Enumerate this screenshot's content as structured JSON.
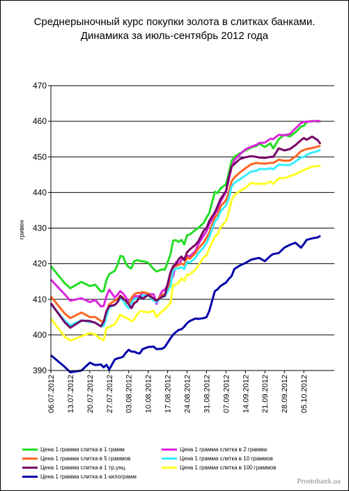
{
  "chart_data": {
    "type": "line",
    "title": "Среднерыночный курс покупки золота в слитках банками. Динамика за июль-сентябрь 2012 года",
    "ylabel": "гривен",
    "ylim": [
      390,
      470
    ],
    "yticks": [
      390,
      400,
      410,
      420,
      430,
      440,
      450,
      460,
      470
    ],
    "grid": "horizontal",
    "legend_position": "bottom",
    "xlim": [
      0,
      102
    ],
    "x_tick_labels": [
      "06.07.2012",
      "13.07.2012",
      "20.07.2012",
      "27.07.2012",
      "03.08.2012",
      "10.08.2012",
      "17.08.2012",
      "24.08.2012",
      "31.08.2012",
      "07.09.2012",
      "14.09.2012",
      "21.09.2012",
      "28.09.2012",
      "05.10.2012"
    ],
    "x_tick_pos": [
      0,
      7,
      14,
      21,
      28,
      35,
      42,
      49,
      56,
      63,
      70,
      77,
      84,
      91
    ],
    "x": [
      0,
      5,
      7,
      11,
      14,
      16,
      18,
      19,
      20,
      21,
      23,
      24,
      25,
      26,
      27,
      28,
      29,
      30,
      31,
      32,
      33,
      35,
      37,
      38,
      40,
      41,
      43,
      44,
      45,
      46,
      47,
      48,
      49,
      50,
      52,
      53,
      55,
      56,
      57,
      59,
      60,
      61,
      63,
      64,
      65,
      66,
      68,
      70,
      72,
      74,
      75,
      77,
      79,
      80,
      82,
      84,
      86,
      88,
      90,
      91,
      92,
      94,
      96,
      97
    ],
    "series": [
      {
        "name": "Цена 1 грамма слитка в 1 грамм",
        "color": "#22dd22",
        "values": [
          419.3,
          414.5,
          413.1,
          414.9,
          413.7,
          414.1,
          412.2,
          412.3,
          415.4,
          417.1,
          418.0,
          419.7,
          422.2,
          422.0,
          420.0,
          419.0,
          418.7,
          420.7,
          421.0,
          420.8,
          420.7,
          420.3,
          418.5,
          417.8,
          418.4,
          418.3,
          422.5,
          426.5,
          426.6,
          426.1,
          426.7,
          425.4,
          428.0,
          428.2,
          429.5,
          430.0,
          431.5,
          433.0,
          434.2,
          440.2,
          439.8,
          441.1,
          442.3,
          445.4,
          448.9,
          450.0,
          451.0,
          451.8,
          452.6,
          453.1,
          453.7,
          452.8,
          453.8,
          452.4,
          455.0,
          456.2,
          455.7,
          456.9,
          458.5,
          458.7,
          459.8,
          460.1,
          459.9,
          460.0
        ]
      },
      {
        "name": "Цена 1 грамма слитка в 2 грамма",
        "color": "#dd22dd",
        "values": [
          415.5,
          411.4,
          409.6,
          410.3,
          409.2,
          409.8,
          408.0,
          408.1,
          410.8,
          412.7,
          410.5,
          411.3,
          412.3,
          411.6,
          410.6,
          409.1,
          408.8,
          410.8,
          410.9,
          410.8,
          411.9,
          411.5,
          411.4,
          408.7,
          412.3,
          412.7,
          415.3,
          416.5,
          420.4,
          419.8,
          421.1,
          421.6,
          422.2,
          422.1,
          423.5,
          425.4,
          427.9,
          429.1,
          431.0,
          434.0,
          435.0,
          437.3,
          440.2,
          443.5,
          447.0,
          449.1,
          450.7,
          452.1,
          452.8,
          453.4,
          453.9,
          454.0,
          455.1,
          455.0,
          456.2,
          456.1,
          456.4,
          458.0,
          459.5,
          459.8,
          459.9,
          460.0,
          460.1,
          460.0
        ]
      },
      {
        "name": "Цена 1 грамма слитка в 5 граммов",
        "color": "#ff6622",
        "values": [
          410.8,
          406.0,
          404.7,
          406.3,
          405.0,
          405.0,
          403.9,
          403.7,
          406.5,
          408.6,
          409.6,
          410.1,
          411.0,
          410.5,
          409.2,
          408.6,
          410.4,
          411.4,
          411.8,
          411.8,
          412.0,
          411.7,
          410.0,
          409.6,
          411.2,
          411.5,
          414.5,
          419.0,
          419.4,
          419.6,
          420.1,
          419.6,
          421.8,
          421.4,
          423.0,
          424.2,
          426.0,
          427.3,
          428.6,
          433.0,
          433.8,
          436.0,
          437.8,
          440.0,
          443.1,
          444.2,
          445.6,
          446.8,
          447.9,
          448.3,
          448.2,
          448.1,
          448.3,
          448.3,
          449.2,
          448.9,
          449.0,
          450.1,
          451.6,
          451.9,
          452.2,
          452.5,
          452.9,
          453.1
        ]
      },
      {
        "name": "Цена 1 грамма слитка в 10 граммов",
        "color": "#33eeff",
        "values": [
          408.6,
          404.0,
          402.7,
          404.1,
          403.6,
          403.5,
          402.4,
          402.5,
          405.3,
          407.7,
          408.4,
          409.2,
          410.2,
          409.8,
          408.3,
          407.5,
          409.0,
          410.1,
          410.3,
          410.4,
          411.1,
          411.1,
          409.7,
          409.2,
          410.7,
          410.8,
          413.6,
          418.1,
          418.7,
          418.7,
          419.0,
          418.5,
          420.5,
          420.3,
          421.6,
          422.9,
          424.6,
          425.9,
          427.5,
          431.8,
          432.7,
          434.6,
          436.4,
          438.4,
          441.6,
          442.7,
          443.7,
          444.8,
          445.9,
          446.1,
          446.6,
          446.5,
          446.8,
          446.5,
          447.8,
          447.7,
          447.7,
          448.7,
          449.8,
          450.0,
          450.6,
          451.2,
          451.6,
          452.0
        ]
      },
      {
        "name": "Цена 1 грамма слитка в 1 тр.унц.",
        "color": "#770066",
        "values": [
          408.9,
          403.5,
          402.0,
          404.0,
          403.9,
          403.4,
          402.4,
          403.7,
          406.7,
          408.1,
          408.4,
          409.2,
          410.9,
          410.1,
          409.7,
          408.6,
          407.5,
          408.9,
          409.4,
          410.8,
          410.2,
          411.2,
          410.2,
          409.6,
          410.7,
          411.0,
          417.5,
          419.3,
          419.9,
          421.3,
          422.0,
          421.0,
          423.2,
          424.0,
          425.3,
          426.2,
          429.3,
          430.0,
          432.0,
          434.4,
          436.2,
          438.1,
          440.4,
          444.3,
          447.3,
          448.0,
          449.4,
          449.9,
          450.2,
          450.0,
          449.8,
          449.7,
          450.0,
          450.0,
          452.4,
          451.8,
          452.2,
          453.3,
          454.7,
          455.3,
          454.8,
          455.7,
          454.7,
          453.6
        ]
      },
      {
        "name": "Цена 1 грамма слитка в 100 граммов",
        "color": "#ffff22",
        "values": [
          404.6,
          399.5,
          398.4,
          399.6,
          400.5,
          400.1,
          398.8,
          398.5,
          401.9,
          402.2,
          403.0,
          404.3,
          405.7,
          405.3,
          404.8,
          404.5,
          403.8,
          404.4,
          405.7,
          406.6,
          406.6,
          406.3,
          406.8,
          405.0,
          406.6,
          407.2,
          409.0,
          414.0,
          414.2,
          414.6,
          415.9,
          415.2,
          416.9,
          417.0,
          418.3,
          419.4,
          421.8,
          422.3,
          424.3,
          427.6,
          428.3,
          430.1,
          432.0,
          434.6,
          437.7,
          439.3,
          440.4,
          441.3,
          442.7,
          442.4,
          442.5,
          442.4,
          443.1,
          442.4,
          444.0,
          444.0,
          444.6,
          445.1,
          446.0,
          446.3,
          446.6,
          447.3,
          447.4,
          447.5
        ]
      },
      {
        "name": "Цена 1 грамма слитка в 1 килограмм",
        "color": "#0000aa",
        "values": [
          394.3,
          391.0,
          389.5,
          390.0,
          392.2,
          391.5,
          391.7,
          390.9,
          391.6,
          390.3,
          393.1,
          393.4,
          393.6,
          393.9,
          395.0,
          395.8,
          395.3,
          395.3,
          394.9,
          394.8,
          396.0,
          396.6,
          396.7,
          396.0,
          396.1,
          396.6,
          399.0,
          400.1,
          400.8,
          401.4,
          401.6,
          402.3,
          403.3,
          403.9,
          404.6,
          404.5,
          404.7,
          405.0,
          406.7,
          412.3,
          412.8,
          413.7,
          414.7,
          415.7,
          416.5,
          418.5,
          419.5,
          420.2,
          421.1,
          421.5,
          421.6,
          420.7,
          422.2,
          422.7,
          423.0,
          424.5,
          425.3,
          425.9,
          424.5,
          425.5,
          426.7,
          427.1,
          427.4,
          427.8
        ]
      }
    ]
  },
  "watermark": "Prostobank.ua"
}
